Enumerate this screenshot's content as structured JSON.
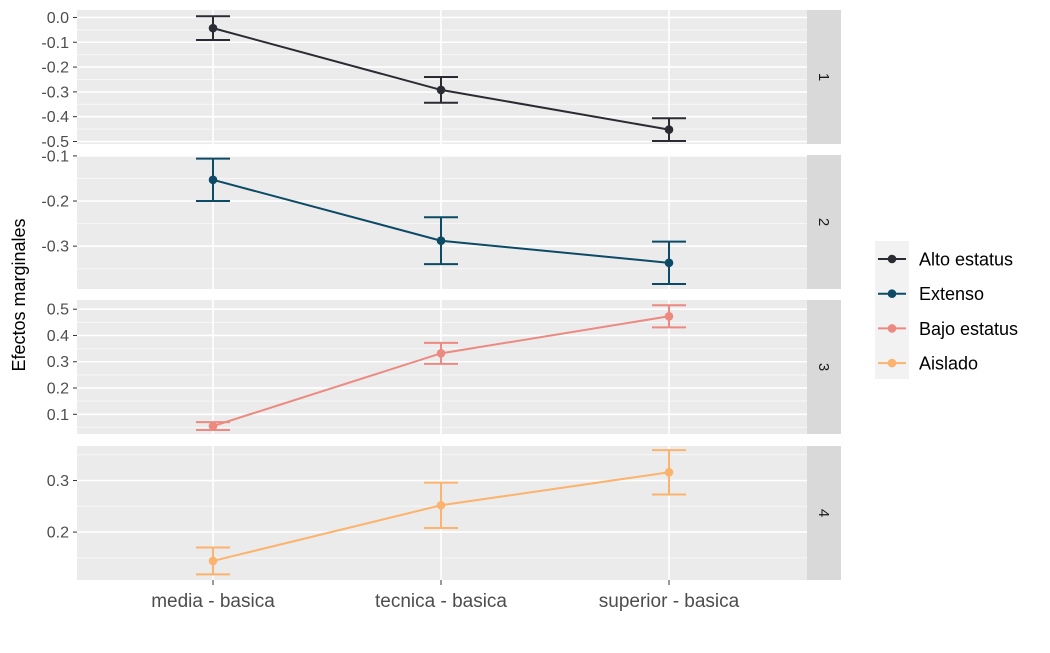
{
  "chart_data": {
    "type": "line",
    "ylabel": "Efectos marginales",
    "xlabel": "",
    "categories": [
      "media - basica",
      "tecnica - basica",
      "superior - basica"
    ],
    "legend_position": "right",
    "grid": true,
    "facets": [
      {
        "strip": "1",
        "series": "Alto estatus",
        "color": "#2b2b33",
        "ylim": [
          -0.51,
          0.03
        ],
        "yticks": [
          0.0,
          -0.1,
          -0.2,
          -0.3,
          -0.4,
          -0.5
        ],
        "ytick_labels": [
          "0.0",
          "-0.1",
          "-0.2",
          "-0.3",
          "-0.4",
          "-0.5"
        ],
        "values": [
          -0.043,
          -0.292,
          -0.452
        ],
        "lower": [
          -0.091,
          -0.344,
          -0.498
        ],
        "upper": [
          0.005,
          -0.24,
          -0.406
        ]
      },
      {
        "strip": "2",
        "series": "Extenso",
        "color": "#0c4a66",
        "ylim": [
          -0.395,
          -0.098
        ],
        "yticks": [
          -0.1,
          -0.2,
          -0.3
        ],
        "ytick_labels": [
          "-0.1",
          "-0.2",
          "-0.3"
        ],
        "values": [
          -0.153,
          -0.288,
          -0.337
        ],
        "lower": [
          -0.2,
          -0.34,
          -0.384
        ],
        "upper": [
          -0.106,
          -0.236,
          -0.29
        ]
      },
      {
        "strip": "3",
        "series": "Bajo estatus",
        "color": "#ec8a82",
        "ylim": [
          0.025,
          0.535
        ],
        "yticks": [
          0.1,
          0.2,
          0.3,
          0.4,
          0.5
        ],
        "ytick_labels": [
          "0.1",
          "0.2",
          "0.3",
          "0.4",
          "0.5"
        ],
        "values": [
          0.055,
          0.332,
          0.473
        ],
        "lower": [
          0.04,
          0.292,
          0.431
        ],
        "upper": [
          0.07,
          0.372,
          0.515
        ]
      },
      {
        "strip": "4",
        "series": "Aislado",
        "color": "#fbb36e",
        "ylim": [
          0.107,
          0.367
        ],
        "yticks": [
          0.2,
          0.3
        ],
        "ytick_labels": [
          "0.2",
          "0.3"
        ],
        "values": [
          0.144,
          0.252,
          0.316
        ],
        "lower": [
          0.118,
          0.208,
          0.273
        ],
        "upper": [
          0.17,
          0.296,
          0.359
        ]
      }
    ],
    "legend": {
      "entries": [
        {
          "label": "Alto estatus",
          "color": "#2b2b33"
        },
        {
          "label": "Extenso",
          "color": "#0c4a66"
        },
        {
          "label": "Bajo estatus",
          "color": "#ec8a82"
        },
        {
          "label": "Aislado",
          "color": "#fbb36e"
        }
      ]
    }
  }
}
